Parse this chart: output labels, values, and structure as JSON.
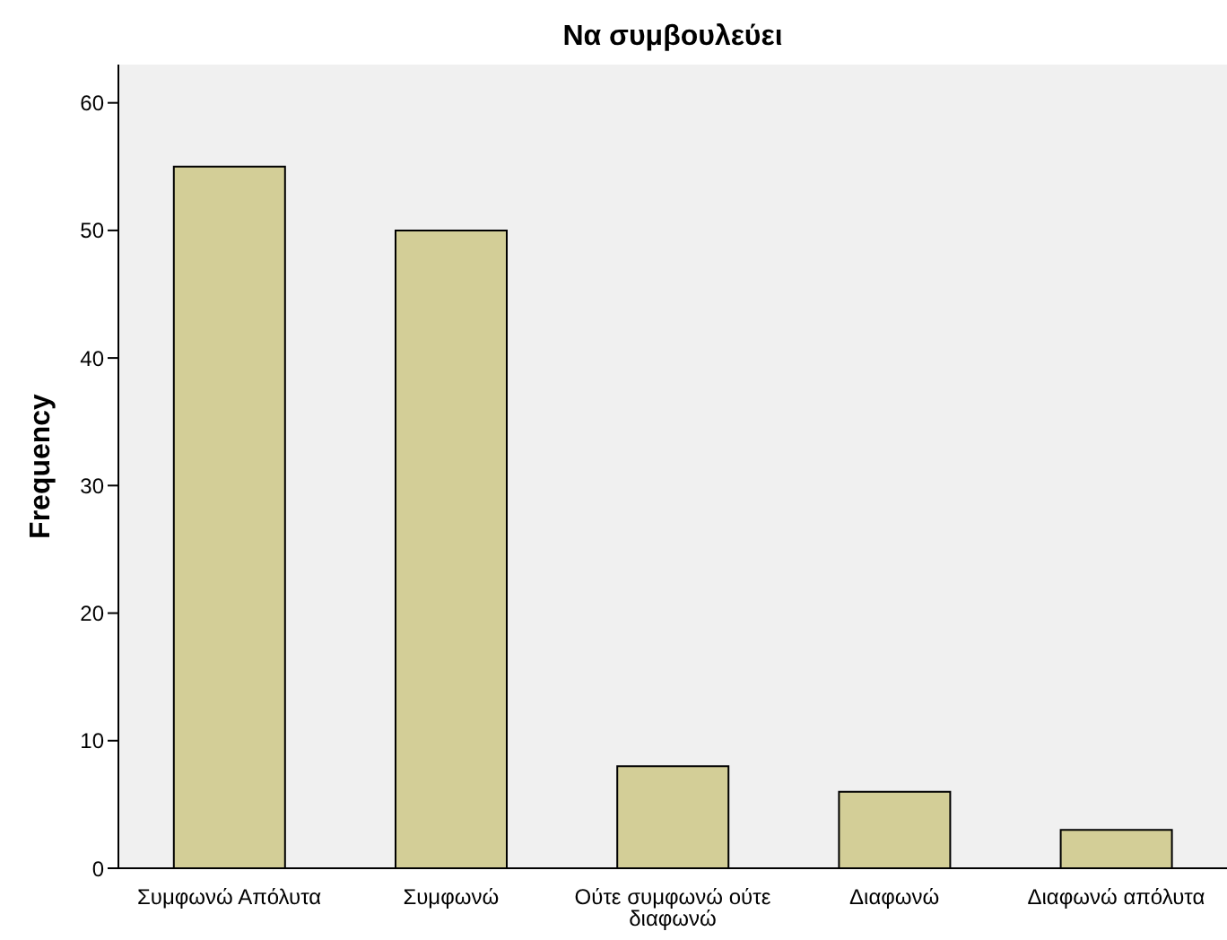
{
  "chart_data": {
    "type": "bar",
    "title": "Να συμβουλεύει",
    "ylabel": "Frequency",
    "categories": [
      "Συμφωνώ Απόλυτα",
      "Συμφωνώ",
      "Ούτε συμφωνώ ούτε διαφωνώ",
      "Διαφωνώ",
      "Διαφωνώ απόλυτα"
    ],
    "values": [
      55,
      50,
      8,
      6,
      3
    ],
    "color": "#d3ce97",
    "ylim": [
      0,
      63
    ],
    "yticks": [
      0,
      10,
      20,
      30,
      40,
      50,
      60
    ],
    "grid": false,
    "legend": false
  }
}
